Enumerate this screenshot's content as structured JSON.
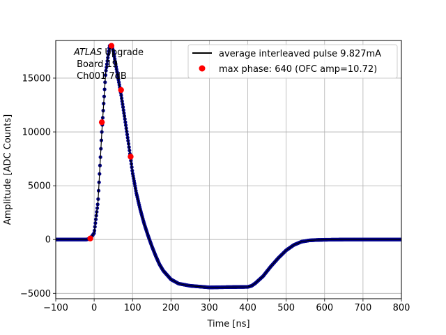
{
  "chart_data": {
    "type": "scatter",
    "xlabel": "Time [ns]",
    "ylabel": "Amplitude [ADC Counts]",
    "xlim": [
      -100,
      800
    ],
    "ylim": [
      -5500,
      18500
    ],
    "xticks": [
      -100,
      0,
      100,
      200,
      300,
      400,
      500,
      600,
      700,
      800
    ],
    "yticks": [
      -5000,
      0,
      5000,
      10000,
      15000
    ],
    "grid": true,
    "legend_position": "top-right",
    "annotation": {
      "title_italic": "ATLAS",
      "title_rest": " Upgrade",
      "line2": "Board 19",
      "line3": "Ch001 7dB"
    },
    "series": [
      {
        "name": "average interleaved pulse 9.827mA",
        "style": "line",
        "color": "#000000",
        "marker_color": "#00008b",
        "points": [
          [
            -100,
            0
          ],
          [
            -20,
            0
          ],
          [
            -10,
            100
          ],
          [
            0,
            600
          ],
          [
            10,
            3500
          ],
          [
            20,
            10000
          ],
          [
            30,
            15500
          ],
          [
            40,
            18000
          ],
          [
            45,
            18100
          ],
          [
            50,
            17500
          ],
          [
            60,
            15500
          ],
          [
            70,
            13500
          ],
          [
            80,
            11200
          ],
          [
            90,
            8800
          ],
          [
            100,
            6200
          ],
          [
            110,
            4300
          ],
          [
            120,
            2800
          ],
          [
            130,
            1500
          ],
          [
            140,
            400
          ],
          [
            150,
            -600
          ],
          [
            160,
            -1500
          ],
          [
            170,
            -2300
          ],
          [
            180,
            -2900
          ],
          [
            200,
            -3700
          ],
          [
            220,
            -4100
          ],
          [
            250,
            -4300
          ],
          [
            300,
            -4450
          ],
          [
            350,
            -4420
          ],
          [
            400,
            -4400
          ],
          [
            410,
            -4300
          ],
          [
            420,
            -4050
          ],
          [
            440,
            -3400
          ],
          [
            460,
            -2500
          ],
          [
            480,
            -1700
          ],
          [
            500,
            -1000
          ],
          [
            520,
            -500
          ],
          [
            540,
            -200
          ],
          [
            560,
            -80
          ],
          [
            575,
            -50
          ],
          [
            580,
            -40
          ],
          [
            600,
            -20
          ],
          [
            650,
            0
          ],
          [
            700,
            0
          ],
          [
            800,
            0
          ]
        ]
      },
      {
        "name": "max phase: 640 (OFC amp=10.72)",
        "style": "points",
        "color": "#ff0000",
        "points": [
          [
            -10,
            100
          ],
          [
            20,
            10900
          ],
          [
            45,
            18000
          ],
          [
            70,
            13900
          ],
          [
            95,
            7700
          ]
        ]
      }
    ]
  }
}
